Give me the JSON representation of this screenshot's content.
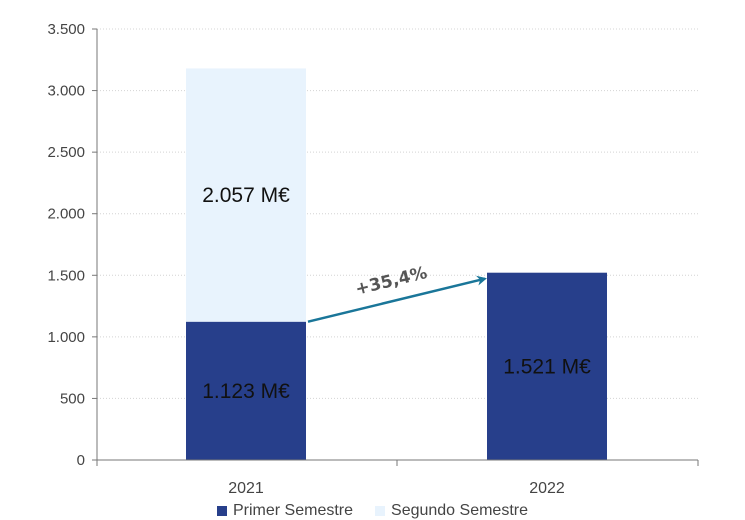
{
  "chart_data": {
    "type": "bar",
    "stacked": true,
    "categories": [
      "2021",
      "2022"
    ],
    "series": [
      {
        "name": "Primer Semestre",
        "values": [
          1123,
          1521
        ],
        "labels": [
          "1.123 M€",
          "1.521 M€"
        ],
        "color": "#273f8b"
      },
      {
        "name": "Segundo Semestre",
        "values": [
          2057,
          null
        ],
        "labels": [
          "2.057 M€",
          ""
        ],
        "color": "#e8f3fd"
      }
    ],
    "ylim": [
      0,
      3500
    ],
    "yticks": [
      0,
      500,
      1000,
      1500,
      2000,
      2500,
      3000,
      3500
    ],
    "ytick_labels": [
      "0",
      "500",
      "1.000",
      "1.500",
      "2.000",
      "2.500",
      "3.000",
      "3.500"
    ],
    "grid": true,
    "legend_position": "bottom",
    "annotation": {
      "text": "+35,4%",
      "from_category": "2021",
      "to_category": "2022",
      "color": "#1a7699"
    }
  }
}
